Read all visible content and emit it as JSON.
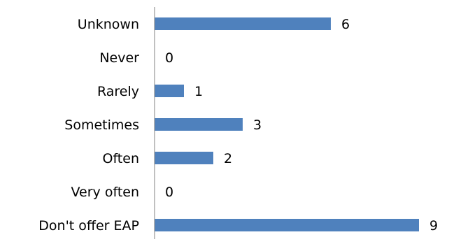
{
  "chart_data": {
    "type": "bar",
    "orientation": "horizontal",
    "categories": [
      "Unknown",
      "Never",
      "Rarely",
      "Sometimes",
      "Often",
      "Very often",
      "Don't offer EAP"
    ],
    "values": [
      6,
      0,
      1,
      3,
      2,
      0,
      9
    ],
    "data_labels": [
      "6",
      "0",
      "1",
      "3",
      "2",
      "0",
      "9"
    ],
    "title": "",
    "xlabel": "",
    "ylabel": "",
    "xlim": [
      0,
      9
    ],
    "grid": false,
    "legend": "none",
    "bar_color": "#4f81bd",
    "axis_color": "#808080"
  }
}
